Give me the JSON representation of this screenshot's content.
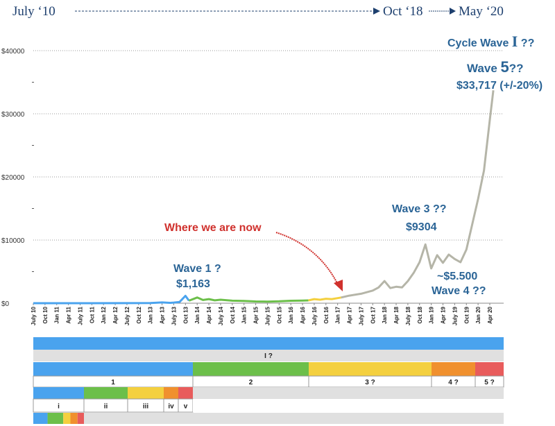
{
  "timeline": {
    "start": "July ‘10",
    "mid": "Oct ‘18",
    "end": "May ‘20"
  },
  "annotations": {
    "cycle": "Cycle Wave I ??",
    "cycle_pre": "Cycle Wave ",
    "cycle_big": "I",
    "cycle_post": " ??",
    "wave5_pre": "Wave ",
    "wave5_big": "5",
    "wave5_post": "??",
    "wave5_value": "$33,717 (+/-20%)",
    "wave3": "Wave 3 ??",
    "wave3_value": "$9304",
    "wave1": "Wave 1 ?",
    "wave1_value": "$1,163",
    "wave4_value": "~$5.500",
    "wave4": "Wave 4 ??",
    "now": "Where we are now"
  },
  "colors": {
    "blue": "#4aa3ee",
    "green": "#6cbf4a",
    "yellow": "#f4d03f",
    "orange": "#f0902e",
    "red": "#e85c5c",
    "gray": "#b5b5a8",
    "label_blue": "#2a6496",
    "label_red": "#d0312d",
    "band_gray": "#e0e0e0"
  },
  "chart_data": {
    "type": "line",
    "ylim": [
      0,
      40000
    ],
    "yticks": [
      "$0",
      "$10000",
      "$20000",
      "$30000",
      "$40000"
    ],
    "ytick_values": [
      0,
      10000,
      20000,
      30000,
      40000
    ],
    "xticks": [
      "July 10",
      "Oct 10",
      "Jan 11",
      "Apr 11",
      "July 11",
      "Oct 11",
      "Jan 12",
      "Apr 12",
      "July 12",
      "Oct 12",
      "Jan 13",
      "Apr 13",
      "July 13",
      "Oct 13",
      "Jan 14",
      "Apr 14",
      "July 14",
      "Oct 14",
      "Jan 15",
      "Apr 15",
      "July 15",
      "Oct 15",
      "Jan 16",
      "Apr 16",
      "July 16",
      "Oct 16",
      "Jan 17",
      "Apr 17",
      "July 17",
      "Oct 17",
      "Jan 18",
      "Apr 18",
      "July 18",
      "Oct 18",
      "Jan 19",
      "Apr 19",
      "July 19",
      "Oct 19",
      "Jan 20",
      "Apr 20"
    ],
    "series": [
      {
        "color_key": "blue",
        "x": [
          0,
          4,
          8,
          10,
          11,
          11.7,
          12,
          12.5,
          13,
          13.3
        ],
        "values": [
          0,
          5,
          10,
          20,
          120,
          60,
          100,
          200,
          1163,
          400
        ]
      },
      {
        "color_key": "green",
        "x": [
          13.3,
          14,
          14.5,
          15,
          15.5,
          16,
          17,
          18,
          19,
          20,
          21,
          22,
          22.5,
          23,
          23.5
        ],
        "values": [
          400,
          900,
          500,
          650,
          450,
          550,
          400,
          350,
          280,
          250,
          300,
          380,
          400,
          420,
          440
        ]
      },
      {
        "color_key": "yellow",
        "x": [
          23.5,
          24,
          24.5,
          25,
          25.5,
          26,
          26.3
        ],
        "values": [
          440,
          650,
          550,
          700,
          650,
          800,
          900
        ]
      },
      {
        "color_key": "gray",
        "x": [
          26.3,
          27,
          28,
          29,
          29.5,
          30,
          30.5,
          31,
          31.5,
          32,
          32.5,
          33,
          33.5,
          34,
          34.5,
          35,
          35.5,
          36,
          36.5,
          37,
          37.5,
          38,
          38.5,
          39,
          39.3
        ],
        "values": [
          900,
          1200,
          1500,
          2000,
          2500,
          3500,
          2400,
          2600,
          2500,
          3500,
          4800,
          6500,
          9304,
          5500,
          7600,
          6400,
          7700,
          7000,
          6500,
          8500,
          12500,
          16500,
          21000,
          29000,
          33717
        ]
      }
    ]
  },
  "bands": {
    "row1": [
      {
        "label": "",
        "color_key": "blue",
        "span": 1
      }
    ],
    "row2": [
      {
        "label": "I ?",
        "span": 1
      }
    ],
    "row3": [
      {
        "color_key": "blue",
        "span": 230
      },
      {
        "color_key": "green",
        "span": 167
      },
      {
        "color_key": "yellow",
        "span": 177
      },
      {
        "color_key": "orange",
        "span": 63
      },
      {
        "color_key": "red",
        "span": 41
      }
    ],
    "row4": [
      {
        "label": "1",
        "span": 230
      },
      {
        "label": "2",
        "span": 167
      },
      {
        "label": "3 ?",
        "span": 177
      },
      {
        "label": "4 ?",
        "span": 63
      },
      {
        "label": "5 ?",
        "span": 41
      }
    ],
    "row5": [
      {
        "color_key": "blue",
        "span": 73
      },
      {
        "color_key": "green",
        "span": 63
      },
      {
        "color_key": "yellow",
        "span": 52
      },
      {
        "color_key": "orange",
        "span": 21
      },
      {
        "color_key": "red",
        "span": 21
      }
    ],
    "row6": [
      {
        "label": "i",
        "span": 73
      },
      {
        "label": "ii",
        "span": 63
      },
      {
        "label": "iii",
        "span": 52
      },
      {
        "label": "iv",
        "span": 21
      },
      {
        "label": "v",
        "span": 21
      }
    ],
    "row7": [
      {
        "color_key": "blue",
        "span": 20
      },
      {
        "color_key": "green",
        "span": 22
      },
      {
        "color_key": "yellow",
        "span": 10
      },
      {
        "color_key": "orange",
        "span": 10
      },
      {
        "color_key": "red",
        "span": 9
      }
    ]
  }
}
